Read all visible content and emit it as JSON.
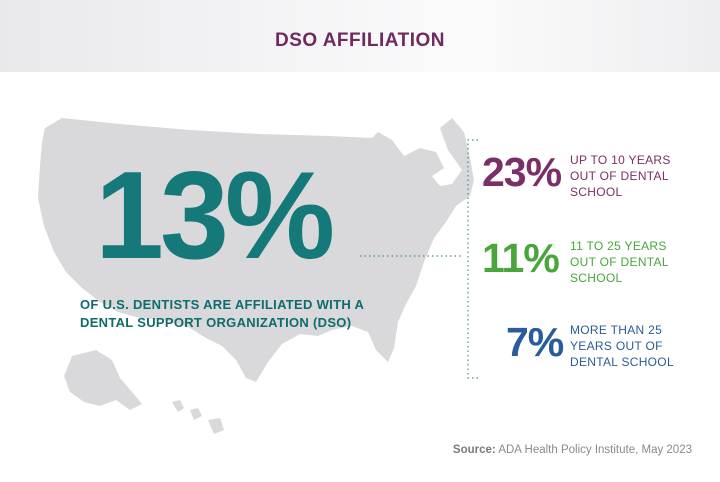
{
  "title": "DSO AFFILIATION",
  "headline": {
    "value": "13%",
    "caption_line1": "OF U.S. DENTISTS ARE AFFILIATED WITH A",
    "caption_line2": "DENTAL SUPPORT ORGANIZATION (DSO)"
  },
  "chart_data": {
    "type": "table",
    "title": "DSO AFFILIATION",
    "overall_percent": 13,
    "categories": [
      "UP TO 10 YEARS OUT OF DENTAL SCHOOL",
      "11 TO 25 YEARS OUT OF DENTAL SCHOOL",
      "MORE THAN 25 YEARS OUT OF DENTAL SCHOOL"
    ],
    "values": [
      23,
      11,
      7
    ],
    "unit": "%"
  },
  "stats": [
    {
      "pct": "23%",
      "line1": "UP TO 10 YEARS",
      "line2": "OUT OF DENTAL",
      "line3": "SCHOOL",
      "color": "#7a2f66"
    },
    {
      "pct": "11%",
      "line1": "11 TO 25 YEARS",
      "line2": "OUT OF DENTAL",
      "line3": "SCHOOL",
      "color": "#4aa63c"
    },
    {
      "pct": "7%",
      "line1": "MORE THAN 25",
      "line2": "YEARS OUT OF",
      "line3": "DENTAL SCHOOL",
      "color": "#2a5b9a"
    }
  ],
  "source": {
    "label": "Source:",
    "text": "ADA Health Policy Institute, May 2023"
  },
  "colors": {
    "title": "#6e2a5c",
    "headline": "#15797a",
    "map": "#d9d9db",
    "bracket": "#4a8c8c"
  }
}
